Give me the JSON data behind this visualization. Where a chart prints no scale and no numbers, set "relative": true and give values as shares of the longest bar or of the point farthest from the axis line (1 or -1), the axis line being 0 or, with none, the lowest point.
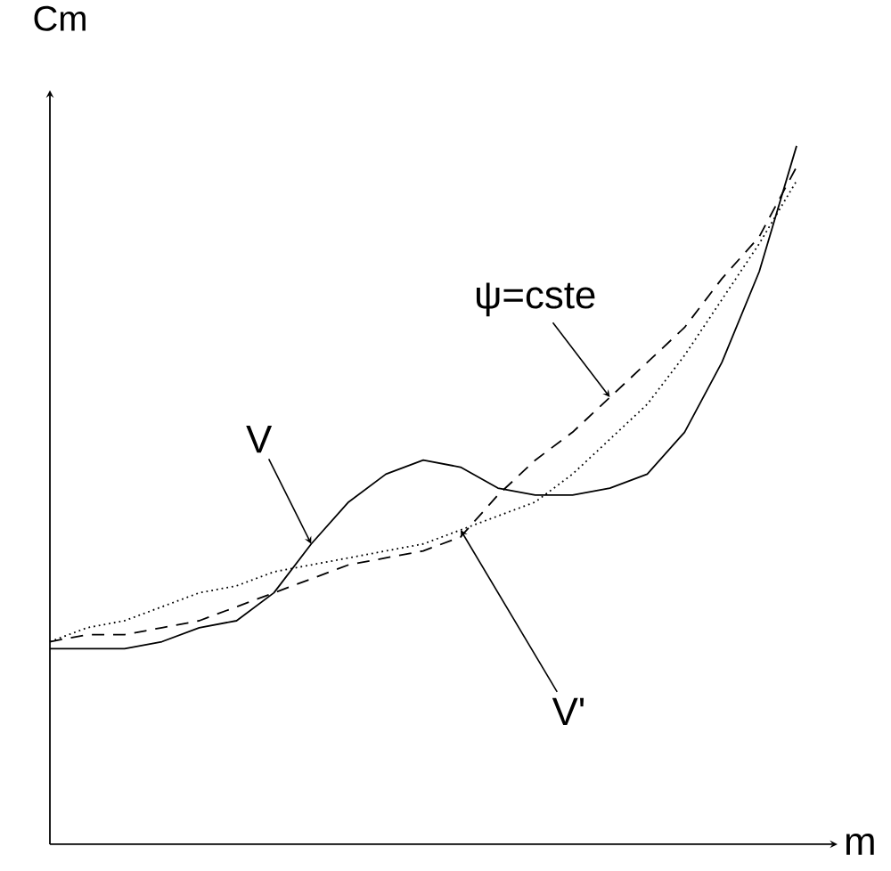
{
  "chart_data": {
    "type": "line",
    "relative": true,
    "xlabel": "m",
    "ylabel": "Cm",
    "categories": [
      null,
      null,
      null,
      null,
      null,
      null,
      null,
      null,
      null,
      null,
      null,
      null,
      null,
      null,
      null,
      null,
      null,
      null,
      null,
      null,
      null
    ],
    "series": [
      {
        "name": "V",
        "color": "#000000",
        "line_style": "solid",
        "values": [
          0.28,
          0.28,
          0.28,
          0.29,
          0.31,
          0.32,
          0.36,
          0.43,
          0.49,
          0.53,
          0.55,
          0.54,
          0.51,
          0.5,
          0.5,
          0.51,
          0.53,
          0.59,
          0.69,
          0.82,
          1
        ]
      },
      {
        "name": "ψ=cste",
        "color": "#000000",
        "line_style": "dashed",
        "values": [
          0.29,
          0.3,
          0.3,
          0.31,
          0.32,
          0.34,
          0.36,
          0.38,
          0.4,
          0.41,
          0.42,
          0.44,
          0.5,
          0.55,
          0.59,
          0.64,
          0.69,
          0.74,
          0.81,
          0.87,
          0.97
        ]
      },
      {
        "name": "V'",
        "color": "#000000",
        "line_style": "dotted",
        "values": [
          0.29,
          0.31,
          0.32,
          0.34,
          0.36,
          0.37,
          0.39,
          0.4,
          0.41,
          0.42,
          0.43,
          0.45,
          0.47,
          0.49,
          0.53,
          0.58,
          0.63,
          0.7,
          0.78,
          0.86,
          0.95
        ]
      }
    ]
  }
}
